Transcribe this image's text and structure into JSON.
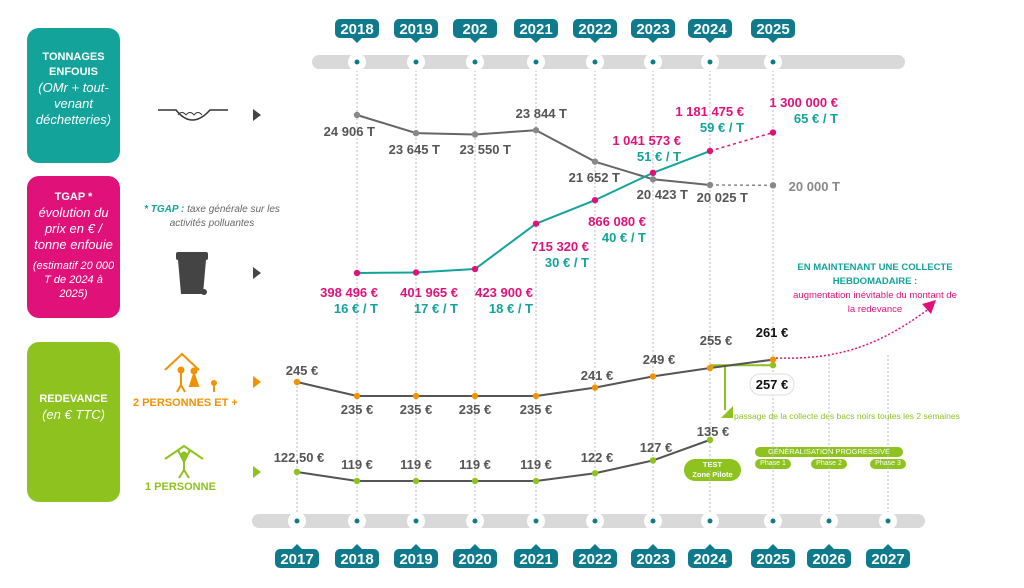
{
  "colors": {
    "teal": "#13a39b",
    "magenta": "#e0127a",
    "green": "#8dc21f",
    "orange": "#f39200",
    "axis": "#0e7a8c",
    "gray": "#666666"
  },
  "sections": {
    "tonnage": {
      "title": "TONNAGES ENFOUIS",
      "sub": "(OMr + tout-venant déchetteries)",
      "icon": "landfill-icon"
    },
    "tgap": {
      "title": "TGAP *",
      "sub": "évolution du prix en € / tonne enfouie",
      "note": "(estimatif 20 000 T de 2024 à 2025)",
      "icon": "trash-bin-icon"
    },
    "redevance": {
      "title": "REDEVANCE",
      "sub": "(en € TTC)"
    }
  },
  "footnote": {
    "key": "* TGAP :",
    "text": "taxe générale sur les activités polluantes"
  },
  "groups": {
    "multi": "2 PERSONNES ET +",
    "single": "1 PERSONNE"
  },
  "annotations": {
    "weekly_title": "EN MAINTENANT UNE COLLECTE HEBDOMADAIRE :",
    "weekly_sub": "augmentation inévitable du montant de la redevance",
    "biweekly": "passage de la collecte des bacs noirs toutes les 2 semaines",
    "test": "TEST",
    "test_sub": "Zone Pilote",
    "generalisation": "GÉNÉRALISATION PROGRESSIVE",
    "phases": [
      "Phase 1",
      "Phase 2",
      "Phase 3"
    ]
  },
  "chart_data": {
    "type": "line",
    "top_axis_years": [
      "2018",
      "2019",
      "202",
      "2021",
      "2022",
      "2023",
      "2024",
      "2025"
    ],
    "bottom_axis_years": [
      "2017",
      "2018",
      "2019",
      "2020",
      "2021",
      "2022",
      "2023",
      "2024",
      "2025",
      "2026",
      "2027"
    ],
    "series": [
      {
        "name": "TONNAGES ENFOUIS",
        "x": [
          2018,
          2019,
          2020,
          2021,
          2022,
          2023,
          2024,
          2025
        ],
        "values": [
          24906,
          23645,
          23550,
          23844,
          21652,
          20423,
          20025,
          20000
        ],
        "labels": [
          "24 906 T",
          "23 645 T",
          "23 550 T",
          "23 844 T",
          "21 652 T",
          "20 423 T",
          "20 025 T",
          "20 000 T"
        ],
        "estimated_from": 2024
      },
      {
        "name": "TGAP",
        "x": [
          2018,
          2019,
          2020,
          2021,
          2022,
          2023,
          2024,
          2025
        ],
        "values": [
          398496,
          401965,
          423900,
          715320,
          866080,
          1041573,
          1181475,
          1300000
        ],
        "labels": [
          "398 496 €",
          "401 965 €",
          "423 900 €",
          "715 320 €",
          "866 080 €",
          "1 041 573 €",
          "1 181 475 €",
          "1 300 000 €"
        ],
        "per_tonne": [
          "16 € / T",
          "17 € / T",
          "18 € / T",
          "30 € / T",
          "40 € / T",
          "51 € / T",
          "59 € / T",
          "65 € / T"
        ],
        "estimated_from": 2024
      },
      {
        "name": "2 PERSONNES ET +",
        "x": [
          2017,
          2018,
          2019,
          2020,
          2021,
          2022,
          2023,
          2024,
          2025
        ],
        "values": [
          245,
          235,
          235,
          235,
          235,
          241,
          249,
          255,
          261
        ],
        "labels": [
          "245 €",
          "235 €",
          "235 €",
          "235 €",
          "235 €",
          "241 €",
          "249 €",
          "255 €",
          "261 €"
        ],
        "alt_2025": {
          "value": 257,
          "label": "257 €"
        }
      },
      {
        "name": "1 PERSONNE",
        "x": [
          2017,
          2018,
          2019,
          2020,
          2021,
          2022,
          2023,
          2024
        ],
        "values": [
          122.5,
          119,
          119,
          119,
          119,
          122,
          127,
          135
        ],
        "labels": [
          "122,50 €",
          "119 €",
          "119 €",
          "119 €",
          "119 €",
          "122 €",
          "127 €",
          "135 €"
        ]
      }
    ]
  }
}
